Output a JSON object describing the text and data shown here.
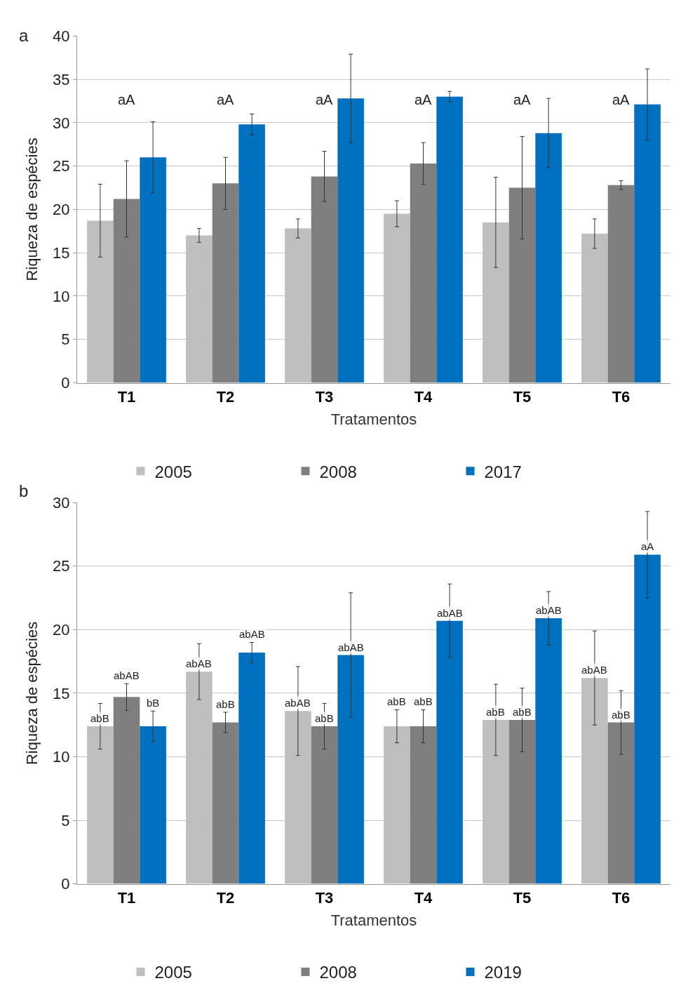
{
  "chart_data": [
    {
      "type": "bar",
      "title": "a",
      "xlabel": "Tratamentos",
      "ylabel": "Riqueza de espécies",
      "categories": [
        "T1",
        "T2",
        "T3",
        "T4",
        "T5",
        "T6"
      ],
      "series": [
        {
          "name": "2005",
          "color": "#bfbfbf",
          "values": [
            18.7,
            17.0,
            17.8,
            19.5,
            18.5,
            17.2
          ],
          "errors": [
            4.2,
            0.8,
            1.1,
            1.5,
            5.2,
            1.7
          ]
        },
        {
          "name": "2008",
          "color": "#7f7f7f",
          "values": [
            21.2,
            23.0,
            23.8,
            25.3,
            22.5,
            22.8
          ],
          "errors": [
            4.4,
            3.0,
            2.9,
            2.4,
            5.9,
            0.5
          ]
        },
        {
          "name": "2017",
          "color": "#0070c0",
          "values": [
            26.0,
            29.8,
            32.8,
            33.0,
            28.8,
            32.1
          ],
          "errors": [
            4.1,
            1.2,
            5.1,
            0.6,
            4.0,
            4.1
          ]
        }
      ],
      "annotations": [
        "aA",
        "aA",
        "aA",
        "aA",
        "aA",
        "aA"
      ],
      "ylim": [
        0,
        40
      ],
      "yticks": [
        0,
        5,
        10,
        15,
        20,
        25,
        30,
        35,
        40
      ],
      "grid": "y",
      "legend": "bottom"
    },
    {
      "type": "bar",
      "title": "b",
      "xlabel": "Tratamentos",
      "ylabel": "Riqueza de espécies",
      "categories": [
        "T1",
        "T2",
        "T3",
        "T4",
        "T5",
        "T6"
      ],
      "series": [
        {
          "name": "2005",
          "color": "#bfbfbf",
          "values": [
            12.4,
            16.7,
            13.6,
            12.4,
            12.9,
            16.2
          ],
          "errors": [
            1.8,
            2.2,
            3.5,
            1.3,
            2.8,
            3.7
          ],
          "value_labels": [
            "abB",
            "abAB",
            "abAB",
            "abB",
            "abB",
            "abAB"
          ]
        },
        {
          "name": "2008",
          "color": "#7f7f7f",
          "values": [
            14.7,
            12.7,
            12.4,
            12.4,
            12.9,
            12.7
          ],
          "errors": [
            1.05,
            0.8,
            1.8,
            1.3,
            2.5,
            2.5
          ],
          "value_labels": [
            "abAB",
            "abB",
            "abB",
            "abB",
            "abB",
            "abB"
          ]
        },
        {
          "name": "2019",
          "color": "#0070c0",
          "values": [
            12.4,
            18.2,
            18.0,
            20.7,
            20.9,
            25.9
          ],
          "errors": [
            1.2,
            0.8,
            4.9,
            2.9,
            2.1,
            3.4
          ],
          "value_labels": [
            "bB",
            "abAB",
            "abAB",
            "abAB",
            "abAB",
            "aA"
          ]
        }
      ],
      "ylim": [
        0,
        30
      ],
      "yticks": [
        0,
        5,
        10,
        15,
        20,
        25,
        30
      ],
      "grid": "y",
      "legend": "bottom"
    }
  ]
}
